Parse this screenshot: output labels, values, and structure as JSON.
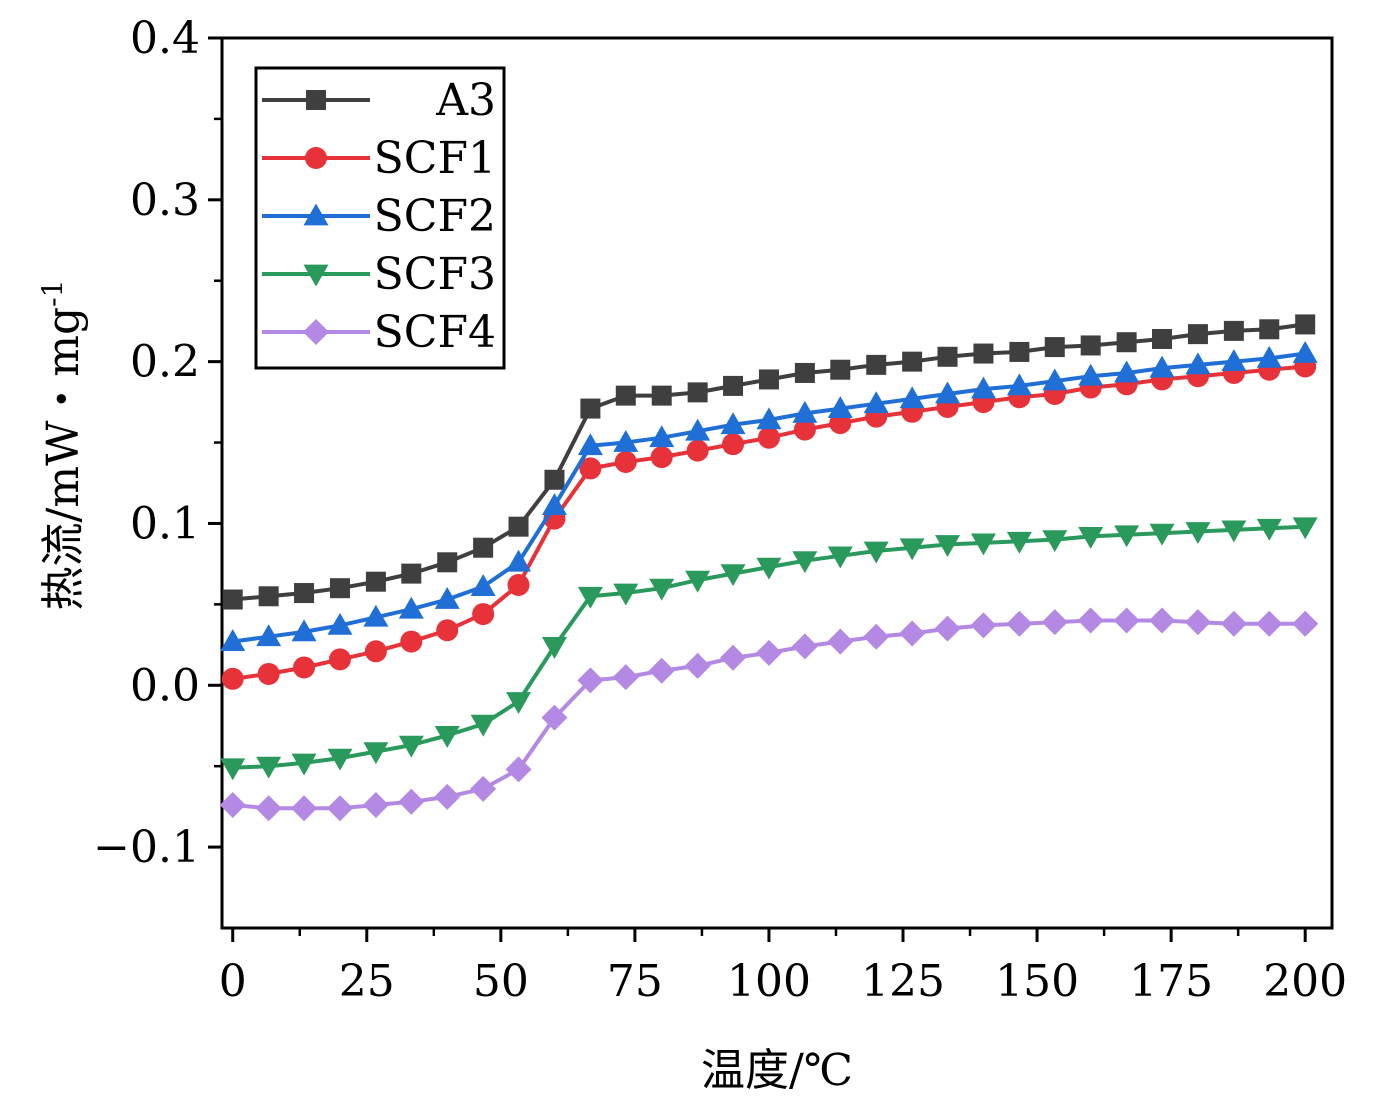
{
  "chart_data": {
    "type": "line",
    "xlabel": "温度/℃",
    "ylabel": "热流/mW・mg",
    "ylabel_superscript": "-1",
    "xlim": [
      -2,
      205
    ],
    "ylim": [
      -0.15,
      0.4
    ],
    "xticks": [
      0,
      25,
      50,
      75,
      100,
      125,
      150,
      175,
      200
    ],
    "xtick_labels": [
      "0",
      "25",
      "50",
      "75",
      "100",
      "125",
      "150",
      "175",
      "200"
    ],
    "yticks": [
      -0.1,
      0.0,
      0.1,
      0.2,
      0.3,
      0.4
    ],
    "ytick_labels": [
      "−0.1",
      "0.0",
      "0.1",
      "0.2",
      "0.3",
      "0.4"
    ],
    "legend_position": "top-left",
    "x": [
      0,
      6.7,
      13.3,
      20,
      26.7,
      33.3,
      40,
      46.7,
      53.3,
      60,
      66.7,
      73.3,
      80,
      86.7,
      93.3,
      100,
      106.7,
      113.3,
      120,
      126.7,
      133.3,
      140,
      146.7,
      153.3,
      160,
      166.7,
      173.3,
      180,
      186.7,
      193.3,
      200
    ],
    "series": [
      {
        "name": "A3",
        "color": "#3f3f3f",
        "marker": "square",
        "values": [
          0.053,
          0.055,
          0.057,
          0.06,
          0.064,
          0.069,
          0.076,
          0.085,
          0.098,
          0.127,
          0.171,
          0.179,
          0.179,
          0.181,
          0.185,
          0.189,
          0.193,
          0.195,
          0.198,
          0.2,
          0.203,
          0.205,
          0.206,
          0.209,
          0.21,
          0.212,
          0.214,
          0.217,
          0.219,
          0.22,
          0.223
        ]
      },
      {
        "name": "SCF1",
        "color": "#e8323a",
        "marker": "circle",
        "values": [
          0.004,
          0.007,
          0.011,
          0.016,
          0.021,
          0.027,
          0.034,
          0.044,
          0.062,
          0.103,
          0.134,
          0.138,
          0.141,
          0.145,
          0.149,
          0.153,
          0.158,
          0.162,
          0.166,
          0.169,
          0.172,
          0.175,
          0.178,
          0.18,
          0.184,
          0.186,
          0.189,
          0.191,
          0.193,
          0.195,
          0.197
        ]
      },
      {
        "name": "SCF2",
        "color": "#1f6fd6",
        "marker": "triangle-up",
        "values": [
          0.027,
          0.03,
          0.033,
          0.037,
          0.042,
          0.047,
          0.053,
          0.061,
          0.076,
          0.111,
          0.148,
          0.15,
          0.153,
          0.157,
          0.161,
          0.164,
          0.168,
          0.171,
          0.174,
          0.177,
          0.18,
          0.183,
          0.185,
          0.188,
          0.191,
          0.193,
          0.196,
          0.198,
          0.2,
          0.202,
          0.205
        ]
      },
      {
        "name": "SCF3",
        "color": "#2a9a5c",
        "marker": "triangle-down",
        "values": [
          -0.051,
          -0.05,
          -0.048,
          -0.045,
          -0.041,
          -0.037,
          -0.031,
          -0.024,
          -0.01,
          0.024,
          0.055,
          0.057,
          0.06,
          0.065,
          0.069,
          0.073,
          0.077,
          0.08,
          0.083,
          0.085,
          0.087,
          0.088,
          0.089,
          0.09,
          0.092,
          0.093,
          0.094,
          0.095,
          0.096,
          0.097,
          0.098
        ]
      },
      {
        "name": "SCF4",
        "color": "#b389e3",
        "marker": "diamond",
        "values": [
          -0.074,
          -0.076,
          -0.076,
          -0.076,
          -0.074,
          -0.072,
          -0.069,
          -0.064,
          -0.052,
          -0.02,
          0.003,
          0.005,
          0.009,
          0.012,
          0.017,
          0.02,
          0.024,
          0.027,
          0.03,
          0.032,
          0.035,
          0.037,
          0.038,
          0.039,
          0.04,
          0.04,
          0.04,
          0.039,
          0.038,
          0.038,
          0.038
        ]
      }
    ]
  }
}
